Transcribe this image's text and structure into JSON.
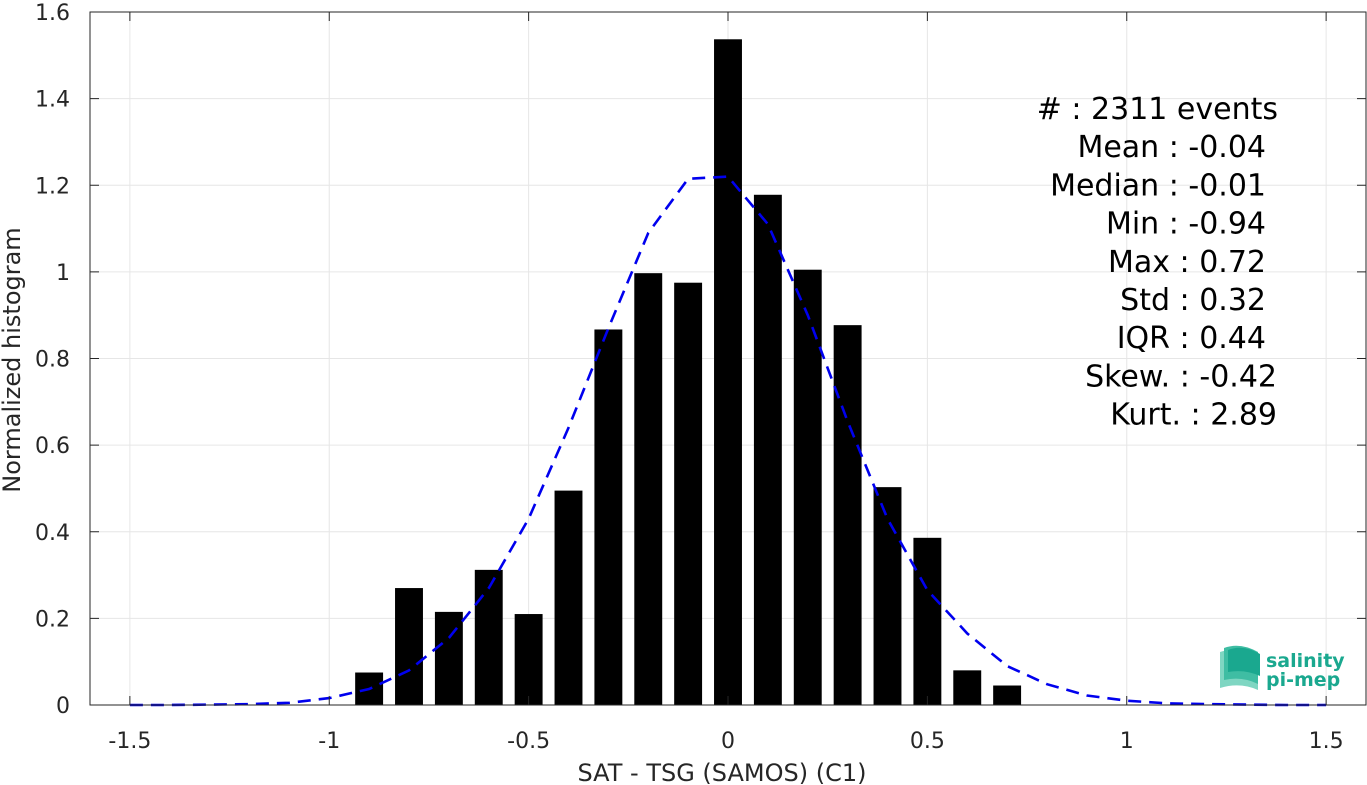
{
  "chart_data": {
    "type": "bar",
    "xlabel": "SAT - TSG (SAMOS) (C1)",
    "ylabel": "Normalized histogram",
    "xlim": [
      -1.6,
      1.6
    ],
    "ylim": [
      0,
      1.6
    ],
    "grid": true,
    "x_ticks": [
      -1.5,
      -1,
      -0.5,
      0,
      0.5,
      1,
      1.5
    ],
    "x_tick_labels": [
      "-1.5",
      "-1",
      "-0.5",
      "0",
      "0.5",
      "1",
      "1.5"
    ],
    "y_ticks": [
      0,
      0.2,
      0.4,
      0.6,
      0.8,
      1,
      1.2,
      1.4,
      1.6
    ],
    "y_tick_labels": [
      "0",
      "0.2",
      "0.4",
      "0.6",
      "0.8",
      "1",
      "1.2",
      "1.4",
      "1.6"
    ],
    "bar_width": 0.07,
    "bars": {
      "x": [
        -0.9,
        -0.8,
        -0.7,
        -0.6,
        -0.5,
        -0.4,
        -0.3,
        -0.2,
        -0.1,
        0.0,
        0.1,
        0.2,
        0.3,
        0.4,
        0.5,
        0.6,
        0.7
      ],
      "values": [
        0.075,
        0.27,
        0.215,
        0.312,
        0.21,
        0.495,
        0.867,
        0.997,
        0.975,
        1.537,
        1.178,
        1.005,
        0.877,
        0.503,
        0.386,
        0.08,
        0.045
      ],
      "color": "#000000"
    },
    "fit_curve": {
      "style": "dashed",
      "color": "#0000ee",
      "x": [
        -1.5,
        -1.4,
        -1.3,
        -1.2,
        -1.1,
        -1.0,
        -0.9,
        -0.8,
        -0.7,
        -0.6,
        -0.5,
        -0.4,
        -0.3,
        -0.2,
        -0.1,
        0.0,
        0.1,
        0.2,
        0.3,
        0.4,
        0.5,
        0.6,
        0.7,
        0.8,
        0.9,
        1.0,
        1.1,
        1.2,
        1.3,
        1.4,
        1.5
      ],
      "y": [
        0.0,
        0.0,
        0.001,
        0.002,
        0.005,
        0.016,
        0.037,
        0.08,
        0.155,
        0.27,
        0.43,
        0.64,
        0.87,
        1.09,
        1.215,
        1.22,
        1.11,
        0.9,
        0.655,
        0.43,
        0.265,
        0.165,
        0.09,
        0.048,
        0.022,
        0.01,
        0.004,
        0.002,
        0.001,
        0.0,
        0.0
      ]
    },
    "stats": [
      {
        "label": "#  : 2311 events"
      },
      {
        "label": "Mean : -0.04"
      },
      {
        "label": "Median : -0.01"
      },
      {
        "label": "Min : -0.94"
      },
      {
        "label": "Max : 0.72"
      },
      {
        "label": "Std : 0.32"
      },
      {
        "label": "IQR : 0.44"
      },
      {
        "label": "Skew. : -0.42"
      },
      {
        "label": "Kurt. : 2.89"
      }
    ]
  },
  "logo": {
    "line1": "salinity",
    "line2": "pi-mep",
    "icon": "salinity-layers-icon",
    "color": "#1aa88f"
  }
}
